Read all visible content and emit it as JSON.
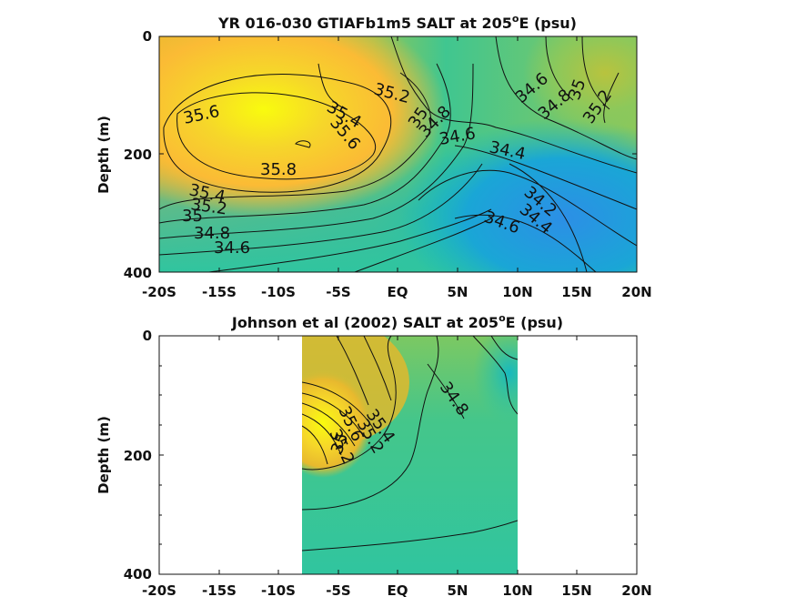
{
  "chart_data": [
    {
      "type": "heatmap",
      "subtype": "filled contour",
      "title": "YR 016-030 GTIAFb1m5 SALT at 205",
      "title_superscript": "o",
      "title_suffix": "E (psu)",
      "ylabel": "Depth (m)",
      "xlabel": "",
      "x_ticks": [
        "-20S",
        "-15S",
        "-10S",
        "-5S",
        "EQ",
        "5N",
        "10N",
        "15N",
        "20N"
      ],
      "y_ticks": [
        "0",
        "200",
        "400"
      ],
      "xlim": [
        -20,
        20
      ],
      "ylim": [
        400,
        0
      ],
      "contour_labels": [
        "35.6",
        "35.4",
        "35.2",
        "35.6",
        "35.8",
        "35.4",
        "35.2",
        "35",
        "34.8",
        "34.6",
        "35",
        "34.8",
        "34.6",
        "34.4",
        "34.6",
        "34.8",
        "35",
        "35.2",
        "34.2",
        "34.4",
        "34.6"
      ],
      "colormap": [
        "#2c8fe6",
        "#1aa6d6",
        "#17b9bf",
        "#30c59f",
        "#5cc87c",
        "#8cc85b",
        "#b8c33e",
        "#e0b82d",
        "#fbbb35",
        "#f6d62a",
        "#f9fb0e"
      ]
    },
    {
      "type": "heatmap",
      "subtype": "filled contour",
      "title": "Johnson et al (2002) SALT at 205",
      "title_superscript": "o",
      "title_suffix": "E (psu)",
      "ylabel": "Depth (m)",
      "xlabel": "",
      "x_ticks": [
        "-20S",
        "-15S",
        "-10S",
        "-5S",
        "EQ",
        "5N",
        "10N",
        "15N",
        "20N"
      ],
      "y_ticks": [
        "0",
        "200",
        "400"
      ],
      "xlim": [
        -20,
        20
      ],
      "ylim": [
        400,
        0
      ],
      "data_extent_x": [
        -8,
        10
      ],
      "contour_labels": [
        "34.8",
        "35.4",
        "35.2",
        "35.6",
        "35.2",
        "35"
      ],
      "colormap": [
        "#2c8fe6",
        "#1aa6d6",
        "#17b9bf",
        "#30c59f",
        "#5cc87c",
        "#8cc85b",
        "#b8c33e",
        "#e0b82d",
        "#fbbb35",
        "#f6d62a",
        "#f9fb0e"
      ]
    }
  ]
}
